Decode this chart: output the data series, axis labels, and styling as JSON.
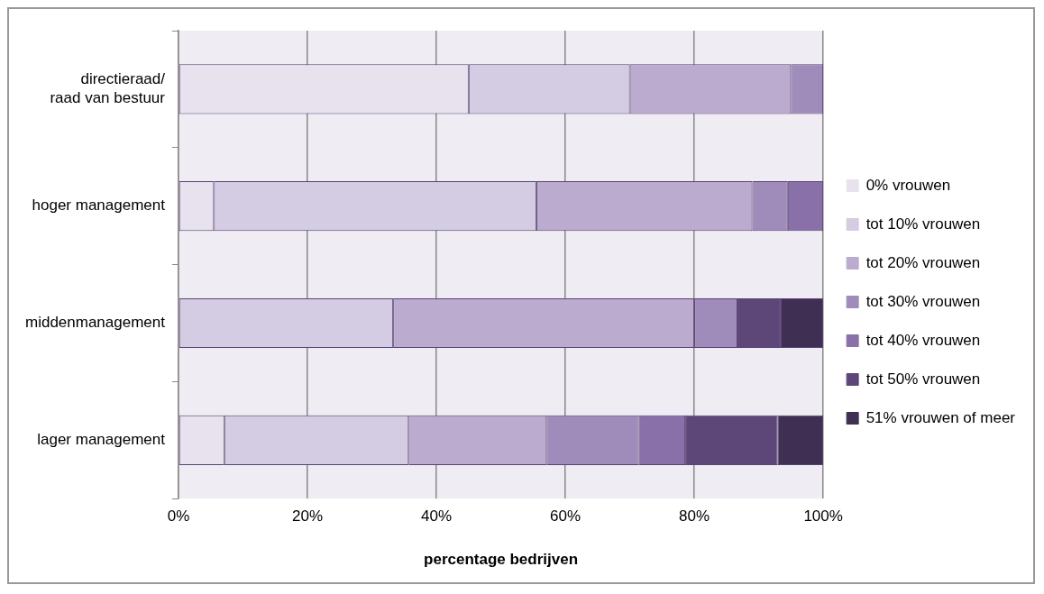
{
  "chart_data": {
    "type": "bar",
    "orientation": "horizontal",
    "stacked": true,
    "xlabel": "percentage bedrijven",
    "categories": [
      "directieraad/ raad van bestuur",
      "hoger management",
      "middenmanagement",
      "lager management"
    ],
    "series": [
      {
        "name": "0% vrouwen",
        "color": "#e8e2ee",
        "values": [
          45,
          5.5,
          0,
          7.1
        ]
      },
      {
        "name": "tot 10% vrouwen",
        "color": "#d4cce2",
        "values": [
          25,
          50,
          33.3,
          28.6
        ]
      },
      {
        "name": "tot 20% vrouwen",
        "color": "#bbaccf",
        "values": [
          25,
          33.5,
          46.7,
          21.4
        ]
      },
      {
        "name": "tot 30% vrouwen",
        "color": "#a08cba",
        "values": [
          5,
          5.5,
          6.7,
          14.3
        ]
      },
      {
        "name": "tot 40% vrouwen",
        "color": "#8a70a8",
        "values": [
          0,
          5.5,
          0,
          7.2
        ]
      },
      {
        "name": "tot 50% vrouwen",
        "color": "#5d4778",
        "values": [
          0,
          0,
          6.7,
          14.3
        ]
      },
      {
        "name": "51% vrouwen of meer",
        "color": "#3f2f52",
        "values": [
          0,
          0,
          6.6,
          7.1
        ]
      }
    ],
    "xlim": [
      0,
      100
    ],
    "xticks": [
      {
        "value": 0,
        "label": "0%"
      },
      {
        "value": 20,
        "label": "20%"
      },
      {
        "value": 40,
        "label": "40%"
      },
      {
        "value": 60,
        "label": "60%"
      },
      {
        "value": 80,
        "label": "80%"
      },
      {
        "value": 100,
        "label": "100%"
      }
    ],
    "grid": "x",
    "legend": "right"
  }
}
